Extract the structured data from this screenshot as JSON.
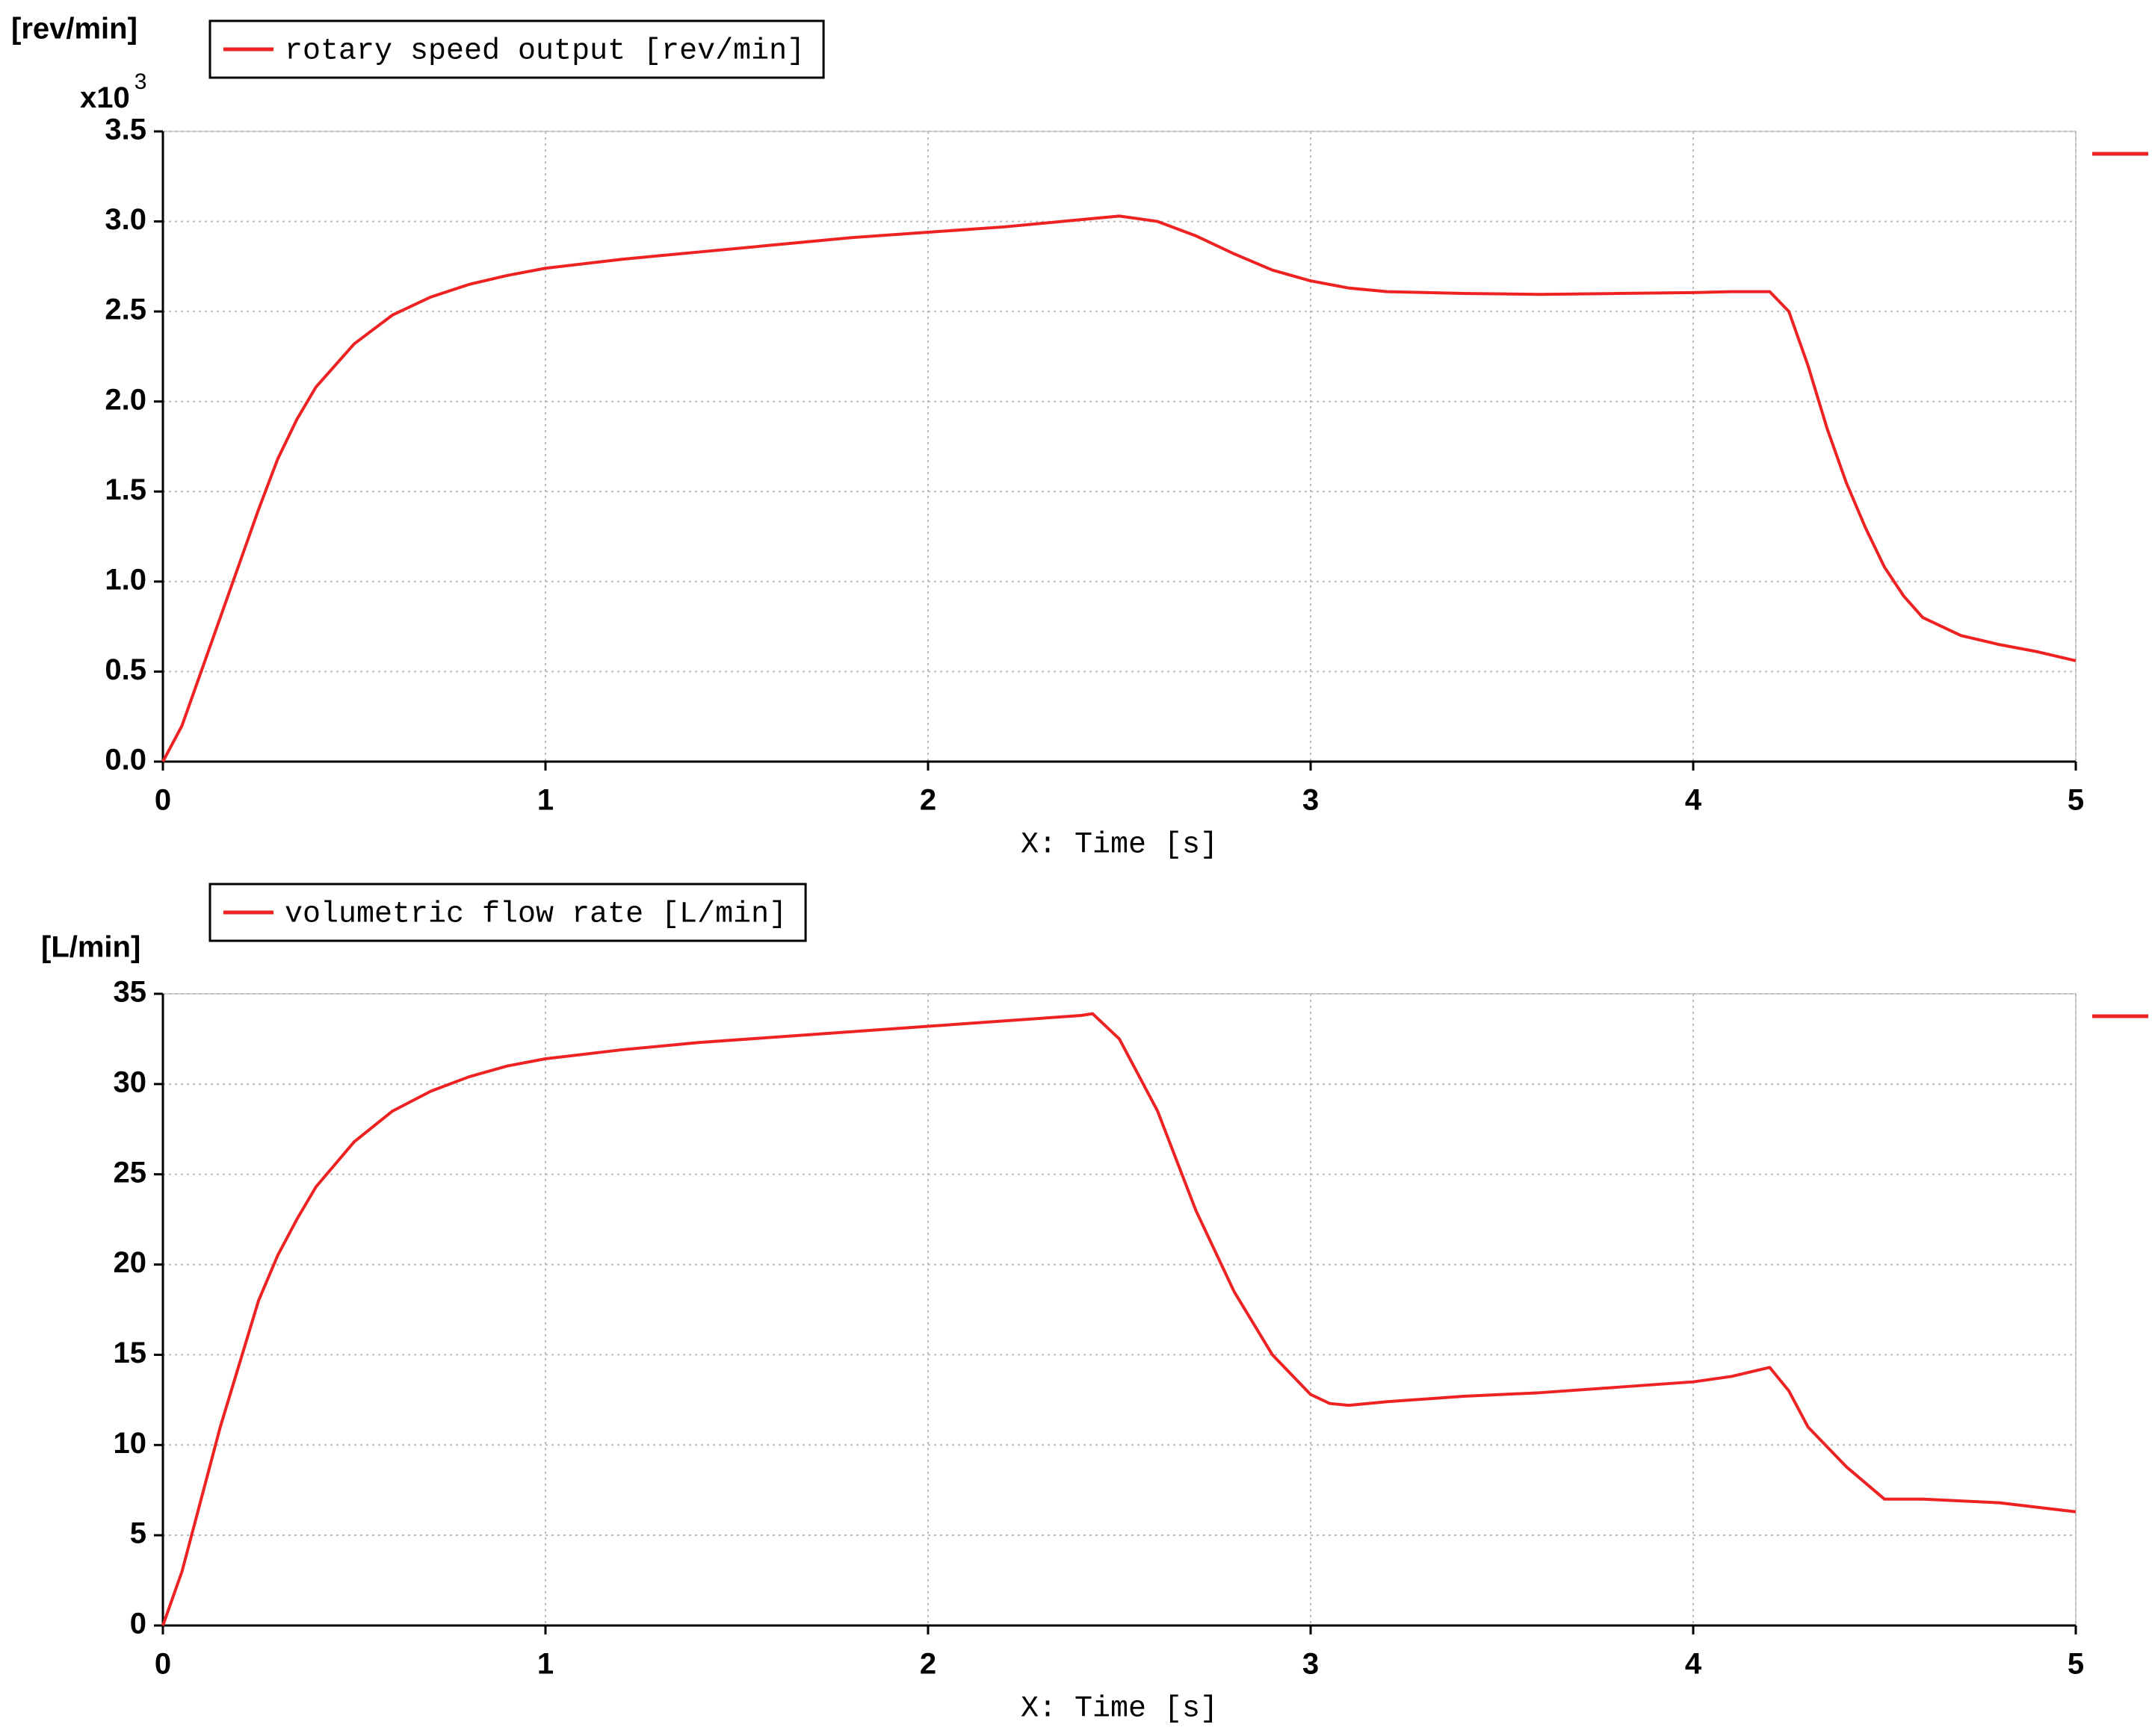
{
  "chart_data": [
    {
      "type": "line",
      "y_unit": "[rev/min]",
      "y_multiplier": "x10",
      "y_multiplier_exponent": "3",
      "x_label": "X: Time [s]",
      "xlim": [
        0,
        5
      ],
      "xticks": [
        0,
        1,
        2,
        3,
        4,
        5
      ],
      "ylim": [
        0,
        3500
      ],
      "yticks": [
        {
          "value": 0,
          "label": "0.0"
        },
        {
          "value": 500,
          "label": "0.5"
        },
        {
          "value": 1000,
          "label": "1.0"
        },
        {
          "value": 1500,
          "label": "1.5"
        },
        {
          "value": 2000,
          "label": "2.0"
        },
        {
          "value": 2500,
          "label": "2.5"
        },
        {
          "value": 3000,
          "label": "3.0"
        },
        {
          "value": 3500,
          "label": "3.5"
        }
      ],
      "grid": true,
      "x": [
        0,
        0.05,
        0.1,
        0.15,
        0.2,
        0.25,
        0.3,
        0.35,
        0.4,
        0.5,
        0.6,
        0.7,
        0.8,
        0.9,
        1.0,
        1.2,
        1.4,
        1.6,
        1.8,
        2.0,
        2.2,
        2.4,
        2.5,
        2.6,
        2.7,
        2.8,
        2.9,
        3.0,
        3.1,
        3.2,
        3.4,
        3.6,
        3.8,
        4.0,
        4.1,
        4.2,
        4.25,
        4.3,
        4.35,
        4.4,
        4.45,
        4.5,
        4.55,
        4.6,
        4.7,
        4.8,
        4.9,
        5.0
      ],
      "series": [
        {
          "name": "rotary speed output [rev/min]",
          "color": "#ee2222",
          "values": [
            0,
            200,
            500,
            800,
            1100,
            1400,
            1680,
            1900,
            2080,
            2320,
            2480,
            2580,
            2650,
            2700,
            2740,
            2790,
            2830,
            2870,
            2910,
            2940,
            2970,
            3010,
            3030,
            3000,
            2920,
            2820,
            2730,
            2670,
            2630,
            2610,
            2600,
            2595,
            2600,
            2605,
            2610,
            2610,
            2500,
            2200,
            1850,
            1550,
            1300,
            1080,
            920,
            800,
            700,
            650,
            610,
            560
          ]
        }
      ]
    },
    {
      "type": "line",
      "y_unit": "[L/min]",
      "x_label": "X: Time [s]",
      "xlim": [
        0,
        5
      ],
      "xticks": [
        0,
        1,
        2,
        3,
        4,
        5
      ],
      "ylim": [
        0,
        35
      ],
      "yticks": [
        0,
        5,
        10,
        15,
        20,
        25,
        30,
        35
      ],
      "grid": true,
      "x": [
        0,
        0.05,
        0.1,
        0.15,
        0.2,
        0.25,
        0.3,
        0.35,
        0.4,
        0.5,
        0.6,
        0.7,
        0.8,
        0.9,
        1.0,
        1.2,
        1.4,
        1.6,
        1.8,
        2.0,
        2.2,
        2.4,
        2.43,
        2.5,
        2.6,
        2.7,
        2.8,
        2.9,
        3.0,
        3.05,
        3.1,
        3.2,
        3.4,
        3.6,
        3.8,
        4.0,
        4.1,
        4.2,
        4.25,
        4.3,
        4.4,
        4.5,
        4.55,
        4.6,
        4.8,
        5.0
      ],
      "series": [
        {
          "name": "volumetric flow rate [L/min]",
          "color": "#ee2222",
          "values": [
            0,
            3,
            7,
            11,
            14.5,
            18,
            20.5,
            22.5,
            24.3,
            26.8,
            28.5,
            29.6,
            30.4,
            31,
            31.4,
            31.9,
            32.3,
            32.6,
            32.9,
            33.2,
            33.5,
            33.8,
            33.9,
            32.5,
            28.5,
            23,
            18.5,
            15,
            12.8,
            12.3,
            12.2,
            12.4,
            12.7,
            12.9,
            13.2,
            13.5,
            13.8,
            14.3,
            13,
            11,
            8.8,
            7.0,
            7.0,
            7.0,
            6.8,
            6.3
          ]
        }
      ]
    }
  ]
}
